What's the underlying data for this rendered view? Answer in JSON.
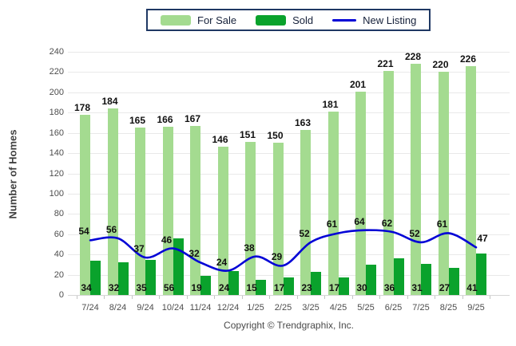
{
  "chart_data": {
    "type": "bar",
    "categories": [
      "7/24",
      "8/24",
      "9/24",
      "10/24",
      "11/24",
      "12/24",
      "1/25",
      "2/25",
      "3/25",
      "4/25",
      "5/25",
      "6/25",
      "7/25",
      "8/25",
      "9/25"
    ],
    "series": [
      {
        "name": "For Sale",
        "type": "bar",
        "color": "#A4DB90",
        "values": [
          178,
          184,
          165,
          166,
          167,
          146,
          151,
          150,
          163,
          181,
          201,
          221,
          228,
          220,
          226
        ]
      },
      {
        "name": "Sold",
        "type": "bar",
        "color": "#0AA22C",
        "values": [
          34,
          32,
          35,
          56,
          19,
          24,
          15,
          17,
          23,
          17,
          30,
          36,
          31,
          27,
          41
        ]
      },
      {
        "name": "New Listing",
        "type": "line",
        "color": "#0202D6",
        "values": [
          54,
          56,
          37,
          46,
          32,
          24,
          38,
          29,
          52,
          61,
          64,
          62,
          52,
          61,
          47
        ]
      }
    ],
    "title": "",
    "xlabel": "",
    "ylabel": "Number of Homes",
    "ylim": [
      0,
      240
    ],
    "ytick_step": 20,
    "grid": "horizontal",
    "legend_position": "top-center",
    "footer": "Copyright © Trendgraphix, Inc."
  },
  "ui_colors": {
    "legend_border": "#1F3864",
    "gridline": "#E9E9E9",
    "axis_text": "#4D4D4D",
    "value_label": "#111111",
    "background": "#FFFFFF"
  }
}
